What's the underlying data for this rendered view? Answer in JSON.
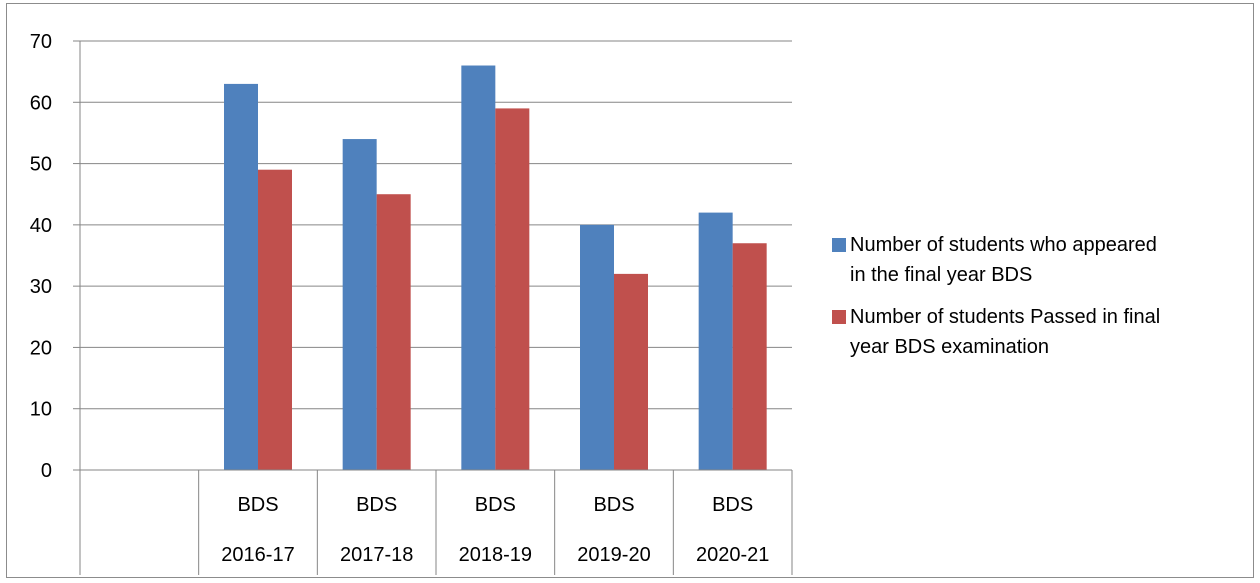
{
  "chart_data": {
    "type": "bar",
    "categories": [
      {
        "top": "",
        "bottom": ""
      },
      {
        "top": "BDS",
        "bottom": "2016-17"
      },
      {
        "top": "BDS",
        "bottom": "2017-18"
      },
      {
        "top": "BDS",
        "bottom": "2018-19"
      },
      {
        "top": "BDS",
        "bottom": "2019-20"
      },
      {
        "top": "BDS",
        "bottom": "2020-21"
      }
    ],
    "series": [
      {
        "name": "Number of students who appeared in the final year BDS",
        "legend_lines": [
          "Number of students who appeared",
          "in the final year BDS"
        ],
        "color": "#4F81BD",
        "values": [
          null,
          63,
          54,
          66,
          40,
          42
        ]
      },
      {
        "name": "Number of students Passed in final year BDS examination",
        "legend_lines": [
          "Number of students Passed in final",
          "year BDS examination"
        ],
        "color": "#C0504D",
        "values": [
          null,
          49,
          45,
          59,
          32,
          37
        ]
      }
    ],
    "ylim": [
      0,
      70
    ],
    "yticks": [
      "0",
      "10",
      "20",
      "30",
      "40",
      "50",
      "60",
      "70"
    ],
    "grid": true,
    "legend_position": "right"
  }
}
